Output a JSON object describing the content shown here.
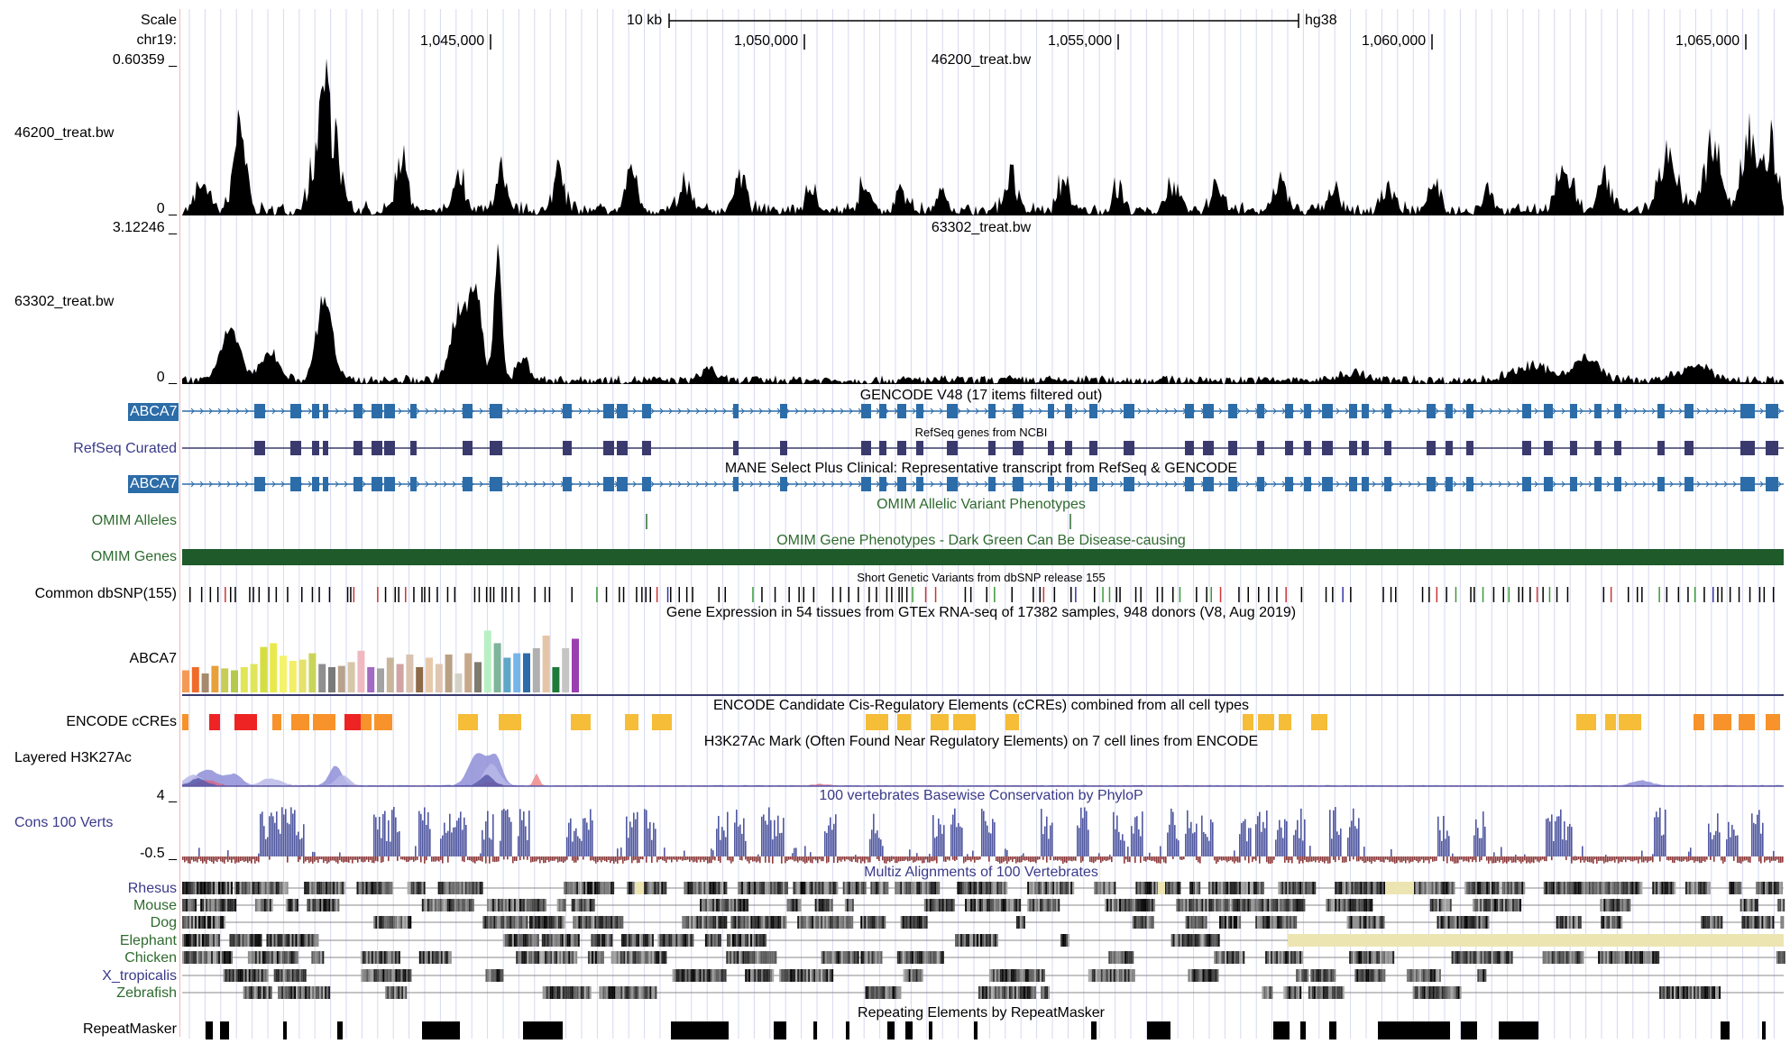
{
  "ruler": {
    "scale_label": "Scale",
    "chrom_label": "chr19:",
    "scale_bar_label": "10 kb",
    "assembly": "hg38",
    "positions": [
      "1,045,000",
      "1,050,000",
      "1,055,000",
      "1,060,000",
      "1,065,000"
    ]
  },
  "tracks": {
    "bw46200": {
      "name": "46200_treat.bw",
      "title": "46200_treat.bw",
      "max": "0.60359 _",
      "min": "0 _"
    },
    "bw63302": {
      "name": "63302_treat.bw",
      "title": "63302_treat.bw",
      "max": "3.12246 _",
      "min": "0 _"
    },
    "gencode": {
      "title": "GENCODE V48 (17 items filtered out)",
      "gene_tag": "ABCA7"
    },
    "refseq": {
      "name": "RefSeq Curated",
      "title": "RefSeq genes from NCBI"
    },
    "mane": {
      "title": "MANE Select Plus Clinical: Representative transcript from RefSeq & GENCODE",
      "gene_tag": "ABCA7"
    },
    "omim_alleles": {
      "name": "OMIM Alleles",
      "title": "OMIM Allelic Variant Phenotypes"
    },
    "omim_genes": {
      "name": "OMIM Genes",
      "title": "OMIM Gene Phenotypes - Dark Green Can Be Disease-causing"
    },
    "dbsnp": {
      "name": "Common dbSNP(155)",
      "title": "Short Genetic Variants from dbSNP release 155"
    },
    "gtex": {
      "name": "ABCA7",
      "title": "Gene Expression in 54 tissues from GTEx RNA-seq of 17382 samples, 948 donors (V8, Aug 2019)"
    },
    "encode_ccres": {
      "name": "ENCODE cCREs",
      "title": "ENCODE Candidate Cis-Regulatory Elements (cCREs) combined from all cell types"
    },
    "h3k27ac": {
      "name": "Layered H3K27Ac",
      "title": "H3K27Ac Mark (Often Found Near Regulatory Elements) on 7 cell lines from ENCODE"
    },
    "cons100": {
      "name": "Cons 100 Verts",
      "title": "100 vertebrates Basewise Conservation by PhyloP",
      "max": "4 _",
      "min": "-0.5 _"
    },
    "multiz": {
      "title": "Multiz Alignments of 100 Vertebrates",
      "species": [
        "Rhesus",
        "Mouse",
        "Dog",
        "Elephant",
        "Chicken",
        "X_tropicalis",
        "Zebrafish"
      ]
    },
    "repeatmasker": {
      "name": "RepeatMasker",
      "title": "Repeating Elements by RepeatMasker"
    }
  },
  "colors": {
    "gene_blue": "#2c6ca8",
    "refseq_navy": "#3a3a6e",
    "omim_green": "#1e5a2a",
    "cons_blue": "#5058a0",
    "cons_red": "#8e3a3a",
    "ccre_red": "#ee2424",
    "ccre_orange": "#f7932a",
    "ccre_yellow": "#f5bd38",
    "multiz_gap": "#ece5b2"
  }
}
